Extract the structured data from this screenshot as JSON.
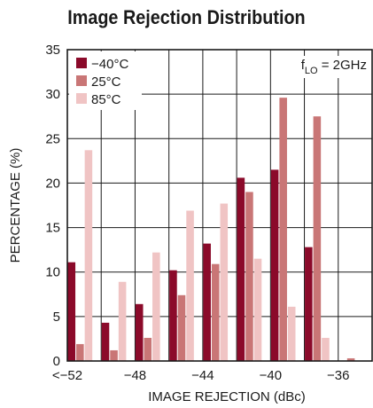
{
  "chart_data": {
    "type": "bar",
    "title": "Image Rejection Distribution",
    "xlabel": "IMAGE REJECTION (dBc)",
    "ylabel": "PERCENTAGE (%)",
    "ylim": [
      0,
      35
    ],
    "yticks": [
      "0",
      "5",
      "10",
      "15",
      "20",
      "25",
      "30",
      "35"
    ],
    "xticks": [
      "<−52",
      "−48",
      "−44",
      "−40",
      "−36"
    ],
    "categories": [
      "<−52",
      "−51",
      "−50",
      "−49",
      "−48",
      "−47",
      "−46",
      "−45",
      "−44",
      "−43",
      "−42",
      "−41",
      "−40",
      "−39",
      "−38",
      "−37",
      "−36",
      "−35"
    ],
    "series": [
      {
        "name": "−40°C",
        "color": "#8b0a2a",
        "values": [
          11.1,
          null,
          4.3,
          null,
          6.4,
          null,
          10.2,
          null,
          13.2,
          null,
          20.6,
          null,
          21.5,
          null,
          12.8,
          null,
          null,
          null
        ]
      },
      {
        "name": "25°C",
        "color": "#c97676",
        "values": [
          1.9,
          null,
          1.2,
          null,
          2.6,
          null,
          7.4,
          null,
          10.9,
          null,
          19.0,
          null,
          29.6,
          null,
          27.5,
          null,
          0.3,
          null
        ]
      },
      {
        "name": "85°C",
        "color": "#f0c4c4",
        "values": [
          null,
          23.7,
          null,
          8.9,
          null,
          12.2,
          null,
          16.9,
          null,
          17.7,
          null,
          11.5,
          null,
          6.1,
          null,
          2.6,
          null,
          null
        ]
      }
    ],
    "grid": true,
    "legend_position": "top-left",
    "annotation": {
      "main": "f",
      "sub": "LO",
      "rest": " = 2GHz",
      "position": "top-right"
    }
  }
}
